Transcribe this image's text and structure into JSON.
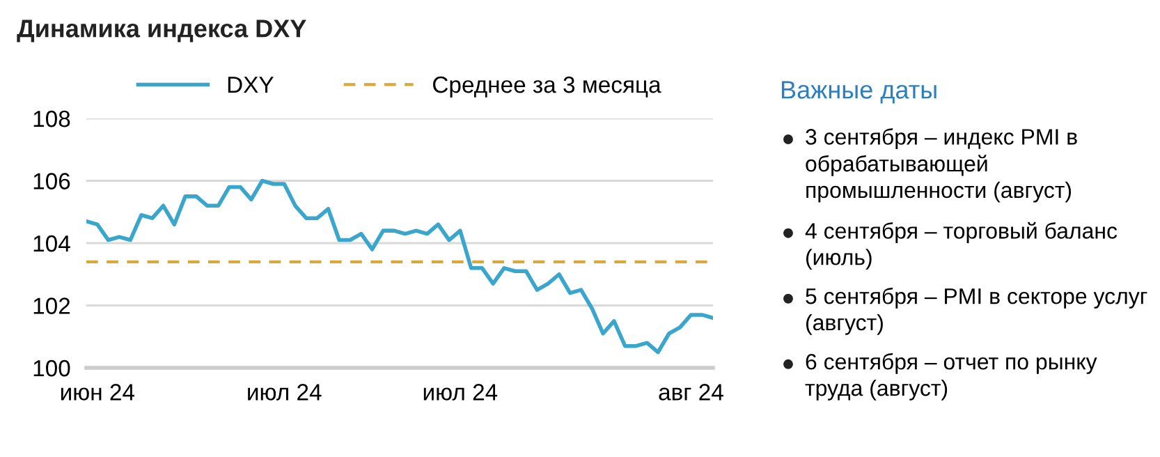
{
  "chart_data": {
    "type": "line",
    "title": "Динамика индекса DXY",
    "categories": [
      null,
      "июн 24",
      null,
      null,
      null,
      null,
      null,
      null,
      null,
      null,
      null,
      null,
      null,
      null,
      null,
      null,
      null,
      null,
      "июл 24",
      null,
      null,
      null,
      null,
      null,
      null,
      null,
      null,
      null,
      null,
      null,
      null,
      null,
      null,
      null,
      "июл 24",
      null,
      null,
      null,
      null,
      null,
      null,
      null,
      null,
      null,
      null,
      null,
      null,
      null,
      null,
      null,
      null,
      null,
      null,
      null,
      null,
      "авг 24",
      null,
      null
    ],
    "series": [
      {
        "name": "DXY",
        "color": "#3aa6cc",
        "values": [
          104.7,
          104.6,
          104.1,
          104.2,
          104.1,
          104.9,
          104.8,
          105.2,
          104.6,
          105.5,
          105.5,
          105.2,
          105.2,
          105.8,
          105.8,
          105.4,
          106.0,
          105.9,
          105.9,
          105.2,
          104.8,
          104.8,
          105.1,
          104.1,
          104.1,
          104.3,
          103.8,
          104.4,
          104.4,
          104.3,
          104.4,
          104.3,
          104.6,
          104.1,
          104.4,
          103.2,
          103.2,
          102.7,
          103.2,
          103.1,
          103.1,
          102.5,
          102.7,
          103.0,
          102.4,
          102.5,
          101.9,
          101.1,
          101.5,
          100.7,
          100.7,
          100.8,
          100.5,
          101.1,
          101.3,
          101.7,
          101.7,
          101.6
        ]
      }
    ],
    "ylim": [
      100,
      108
    ],
    "yticks": [
      100,
      102,
      104,
      106,
      108
    ],
    "grid": "y",
    "legend": "top",
    "line_style": "solid",
    "marker": "none",
    "ref_lines": [
      {
        "axis": "y",
        "value": 103.4,
        "label": "Среднее за 3 месяца",
        "color": "#d9a83a",
        "line_style": "dashed"
      }
    ],
    "annotations": [
      "Важные даты",
      "3 сентября – индекс PMI в обрабатывающей промышленности (август)",
      "4 сентября – торговый баланс (июль)",
      "5 сентября – PMI в секторе услуг (август)",
      "6 сентября – отчет по рынку труда (август)"
    ]
  }
}
